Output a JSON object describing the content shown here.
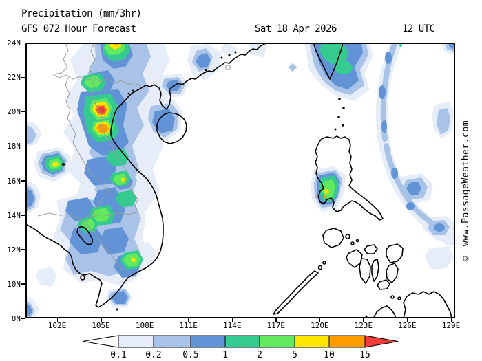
{
  "header": {
    "title": "Precipitation (mm/3hr)",
    "subtitle": "GFS 072 Hour Forecast",
    "date": "Sat 18 Apr 2026",
    "time": "12 UTC"
  },
  "watermark": "© www.PassageWeather.com",
  "map": {
    "region": "South China Sea / Vietnam / Philippines",
    "lat_ticks": [
      "24N",
      "22N",
      "20N",
      "18N",
      "16N",
      "14N",
      "12N",
      "10N",
      "8N"
    ],
    "lon_ticks": [
      "102E",
      "105E",
      "108E",
      "111E",
      "114E",
      "117E",
      "120E",
      "123E",
      "126E",
      "129E"
    ]
  },
  "legend": {
    "units": "mm/3hr",
    "values": [
      "0.1",
      "0.2",
      "0.5",
      "1",
      "2",
      "5",
      "10",
      "15"
    ],
    "colors": [
      "#FFFFFF",
      "#E7EDF8",
      "#A9C3E8",
      "#6193D6",
      "#35CA8F",
      "#62E95E",
      "#FFE600",
      "#FF9C00",
      "#F23B3B"
    ]
  },
  "precipitation_features": [
    {
      "area": "northern-and-central-vietnam-laos",
      "max_band": ">15",
      "note": "intense band with yellow/orange/red cores near 20N 105E"
    },
    {
      "area": "cambodia-south-vietnam",
      "max_band": "5-10",
      "note": "scattered green cells with yellow dots"
    },
    {
      "area": "taiwan-south",
      "max_band": "1-2",
      "note": "teal-green patch at top edge near 121E"
    },
    {
      "area": "west-luzon",
      "max_band": "10-15",
      "note": "green cell with yellow/orange speck near 15.5N 120.5E"
    },
    {
      "area": "offshore-band-125E",
      "max_band": "0.5-1",
      "note": "long narrow blue band curving north to south"
    },
    {
      "area": "hainan",
      "max_band": "0.5-1",
      "note": "blue patch over island"
    }
  ]
}
